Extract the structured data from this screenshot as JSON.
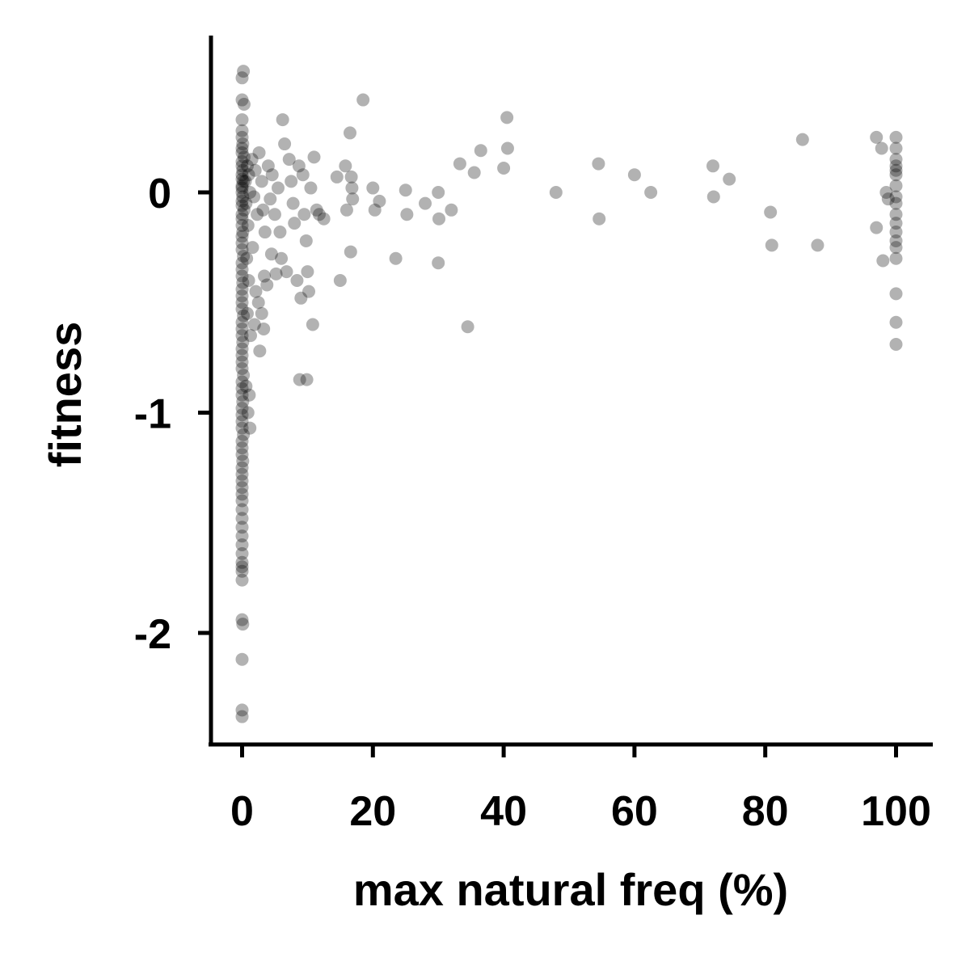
{
  "chart_data": {
    "type": "scatter",
    "title": "",
    "xlabel": "max natural freq (%)",
    "ylabel": "fitness",
    "xlim": [
      -2.5,
      105
    ],
    "ylim": [
      -2.5,
      0.7
    ],
    "xticks": [
      0,
      20,
      40,
      60,
      80,
      100
    ],
    "yticks": [
      0,
      -1,
      -2
    ],
    "xtick_labels": [
      "0",
      "20",
      "40",
      "60",
      "80",
      "100"
    ],
    "ytick_labels": [
      "0",
      "-1",
      "-2"
    ],
    "grid": false,
    "marker_color": "#000000",
    "marker_alpha": 0.3,
    "series": [
      {
        "points": [
          [
            0.0,
            0.52
          ],
          [
            0.2,
            0.55
          ],
          [
            0.0,
            0.42
          ],
          [
            0.3,
            0.4
          ],
          [
            0.0,
            0.33
          ],
          [
            0.0,
            0.28
          ],
          [
            0.0,
            0.25
          ],
          [
            0.1,
            0.22
          ],
          [
            0.0,
            0.2
          ],
          [
            0.0,
            0.18
          ],
          [
            0.3,
            0.16
          ],
          [
            0.0,
            0.14
          ],
          [
            0.0,
            0.12
          ],
          [
            0.1,
            0.1
          ],
          [
            0.0,
            0.08
          ],
          [
            0.0,
            0.06
          ],
          [
            0.2,
            0.05
          ],
          [
            0.0,
            0.03
          ],
          [
            0.0,
            0.02
          ],
          [
            0.0,
            0.0
          ],
          [
            0.1,
            -0.02
          ],
          [
            0.0,
            -0.04
          ],
          [
            0.0,
            -0.06
          ],
          [
            0.3,
            -0.08
          ],
          [
            0.0,
            -0.1
          ],
          [
            0.0,
            -0.12
          ],
          [
            0.0,
            -0.15
          ],
          [
            0.1,
            -0.18
          ],
          [
            0.0,
            -0.2
          ],
          [
            0.0,
            -0.23
          ],
          [
            0.0,
            -0.26
          ],
          [
            0.2,
            -0.29
          ],
          [
            0.0,
            -0.32
          ],
          [
            0.0,
            -0.35
          ],
          [
            0.0,
            -0.38
          ],
          [
            0.1,
            -0.41
          ],
          [
            0.0,
            -0.44
          ],
          [
            0.0,
            -0.47
          ],
          [
            0.0,
            -0.5
          ],
          [
            0.0,
            -0.53
          ],
          [
            0.2,
            -0.56
          ],
          [
            0.0,
            -0.59
          ],
          [
            0.0,
            -0.62
          ],
          [
            0.0,
            -0.65
          ],
          [
            0.1,
            -0.68
          ],
          [
            0.0,
            -0.71
          ],
          [
            0.0,
            -0.74
          ],
          [
            0.0,
            -0.77
          ],
          [
            0.0,
            -0.8
          ],
          [
            0.2,
            -0.83
          ],
          [
            0.0,
            -0.86
          ],
          [
            0.0,
            -0.89
          ],
          [
            0.0,
            -0.92
          ],
          [
            0.1,
            -0.95
          ],
          [
            0.0,
            -0.98
          ],
          [
            0.0,
            -1.01
          ],
          [
            0.0,
            -1.04
          ],
          [
            0.0,
            -1.07
          ],
          [
            0.2,
            -1.1
          ],
          [
            0.0,
            -1.13
          ],
          [
            0.0,
            -1.16
          ],
          [
            0.0,
            -1.19
          ],
          [
            0.1,
            -1.22
          ],
          [
            0.0,
            -1.25
          ],
          [
            0.0,
            -1.28
          ],
          [
            0.0,
            -1.31
          ],
          [
            0.0,
            -1.34
          ],
          [
            0.0,
            -1.37
          ],
          [
            0.0,
            -1.4
          ],
          [
            0.0,
            -1.44
          ],
          [
            0.0,
            -1.48
          ],
          [
            0.0,
            -1.52
          ],
          [
            0.0,
            -1.56
          ],
          [
            0.0,
            -1.6
          ],
          [
            0.0,
            -1.64
          ],
          [
            0.0,
            -1.68
          ],
          [
            0.0,
            -1.7
          ],
          [
            0.0,
            -1.72
          ],
          [
            0.0,
            -1.76
          ],
          [
            0.0,
            -1.94
          ],
          [
            0.1,
            -1.96
          ],
          [
            0.0,
            -2.12
          ],
          [
            0.0,
            -2.35
          ],
          [
            0.0,
            -2.38
          ],
          [
            0.5,
            0.05
          ],
          [
            0.8,
            0.12
          ],
          [
            0.6,
            -0.05
          ],
          [
            1.0,
            0.08
          ],
          [
            0.9,
            -0.15
          ],
          [
            1.2,
            0.0
          ],
          [
            0.7,
            -0.3
          ],
          [
            1.0,
            -0.4
          ],
          [
            0.8,
            -0.55
          ],
          [
            1.3,
            -0.65
          ],
          [
            0.6,
            -0.88
          ],
          [
            1.1,
            -0.92
          ],
          [
            0.9,
            -1.0
          ],
          [
            1.2,
            -1.07
          ],
          [
            1.5,
            0.15
          ],
          [
            1.8,
            -0.02
          ],
          [
            2.0,
            0.1
          ],
          [
            2.3,
            -0.1
          ],
          [
            2.6,
            0.18
          ],
          [
            1.6,
            -0.25
          ],
          [
            2.1,
            -0.45
          ],
          [
            2.5,
            -0.5
          ],
          [
            1.9,
            -0.6
          ],
          [
            3.0,
            0.05
          ],
          [
            3.2,
            -0.08
          ],
          [
            3.5,
            -0.18
          ],
          [
            3.4,
            -0.38
          ],
          [
            3.8,
            -0.42
          ],
          [
            3.0,
            -0.55
          ],
          [
            3.3,
            -0.62
          ],
          [
            2.7,
            -0.72
          ],
          [
            4.0,
            0.12
          ],
          [
            4.3,
            -0.03
          ],
          [
            4.6,
            0.08
          ],
          [
            5.0,
            -0.1
          ],
          [
            5.5,
            0.02
          ],
          [
            5.8,
            -0.18
          ],
          [
            6.2,
            0.33
          ],
          [
            6.5,
            0.22
          ],
          [
            6.0,
            -0.3
          ],
          [
            6.8,
            -0.36
          ],
          [
            7.2,
            0.15
          ],
          [
            7.5,
            0.05
          ],
          [
            7.8,
            -0.05
          ],
          [
            8.0,
            -0.14
          ],
          [
            8.4,
            -0.4
          ],
          [
            8.7,
            0.12
          ],
          [
            9.0,
            -0.48
          ],
          [
            9.3,
            0.08
          ],
          [
            9.5,
            -0.1
          ],
          [
            9.8,
            -0.22
          ],
          [
            10.0,
            -0.36
          ],
          [
            10.2,
            -0.45
          ],
          [
            10.5,
            0.02
          ],
          [
            10.8,
            -0.6
          ],
          [
            11.0,
            0.16
          ],
          [
            11.4,
            -0.08
          ],
          [
            11.8,
            -0.1
          ],
          [
            12.5,
            -0.12
          ],
          [
            8.8,
            -0.85
          ],
          [
            9.9,
            -0.85
          ],
          [
            4.5,
            -0.28
          ],
          [
            5.2,
            -0.37
          ],
          [
            14.5,
            0.07
          ],
          [
            15.0,
            -0.4
          ],
          [
            15.8,
            0.12
          ],
          [
            16.0,
            -0.08
          ],
          [
            16.5,
            0.27
          ],
          [
            16.7,
            0.07
          ],
          [
            16.8,
            0.02
          ],
          [
            16.9,
            -0.03
          ],
          [
            16.6,
            -0.27
          ],
          [
            18.5,
            0.42
          ],
          [
            20.0,
            0.02
          ],
          [
            20.3,
            -0.08
          ],
          [
            21.0,
            -0.04
          ],
          [
            23.5,
            -0.3
          ],
          [
            25.0,
            0.01
          ],
          [
            25.2,
            -0.1
          ],
          [
            28.0,
            -0.05
          ],
          [
            30.0,
            0.0
          ],
          [
            30.1,
            -0.12
          ],
          [
            30.0,
            -0.32
          ],
          [
            32.0,
            -0.08
          ],
          [
            33.3,
            0.13
          ],
          [
            34.5,
            -0.61
          ],
          [
            35.5,
            0.09
          ],
          [
            36.5,
            0.19
          ],
          [
            40.0,
            0.11
          ],
          [
            40.5,
            0.34
          ],
          [
            40.6,
            0.2
          ],
          [
            48.0,
            0.0
          ],
          [
            54.5,
            0.13
          ],
          [
            54.6,
            -0.12
          ],
          [
            60.0,
            0.08
          ],
          [
            62.5,
            0.0
          ],
          [
            72.0,
            0.12
          ],
          [
            72.1,
            -0.02
          ],
          [
            74.5,
            0.06
          ],
          [
            80.8,
            -0.09
          ],
          [
            81.0,
            -0.24
          ],
          [
            85.7,
            0.24
          ],
          [
            88.0,
            -0.24
          ],
          [
            97.0,
            0.25
          ],
          [
            97.0,
            -0.16
          ],
          [
            97.8,
            0.2
          ],
          [
            98.0,
            -0.31
          ],
          [
            98.5,
            0.0
          ],
          [
            98.8,
            -0.03
          ],
          [
            100.0,
            0.25
          ],
          [
            100.0,
            0.2
          ],
          [
            100.0,
            0.15
          ],
          [
            100.0,
            0.12
          ],
          [
            100.0,
            0.1
          ],
          [
            100.0,
            0.08
          ],
          [
            100.0,
            0.03
          ],
          [
            100.0,
            -0.02
          ],
          [
            100.0,
            -0.05
          ],
          [
            100.0,
            -0.1
          ],
          [
            100.0,
            -0.14
          ],
          [
            100.0,
            -0.18
          ],
          [
            100.0,
            -0.22
          ],
          [
            100.0,
            -0.25
          ],
          [
            100.0,
            -0.3
          ],
          [
            100.0,
            -0.46
          ],
          [
            100.0,
            -0.59
          ],
          [
            100.0,
            -0.69
          ]
        ]
      }
    ]
  }
}
